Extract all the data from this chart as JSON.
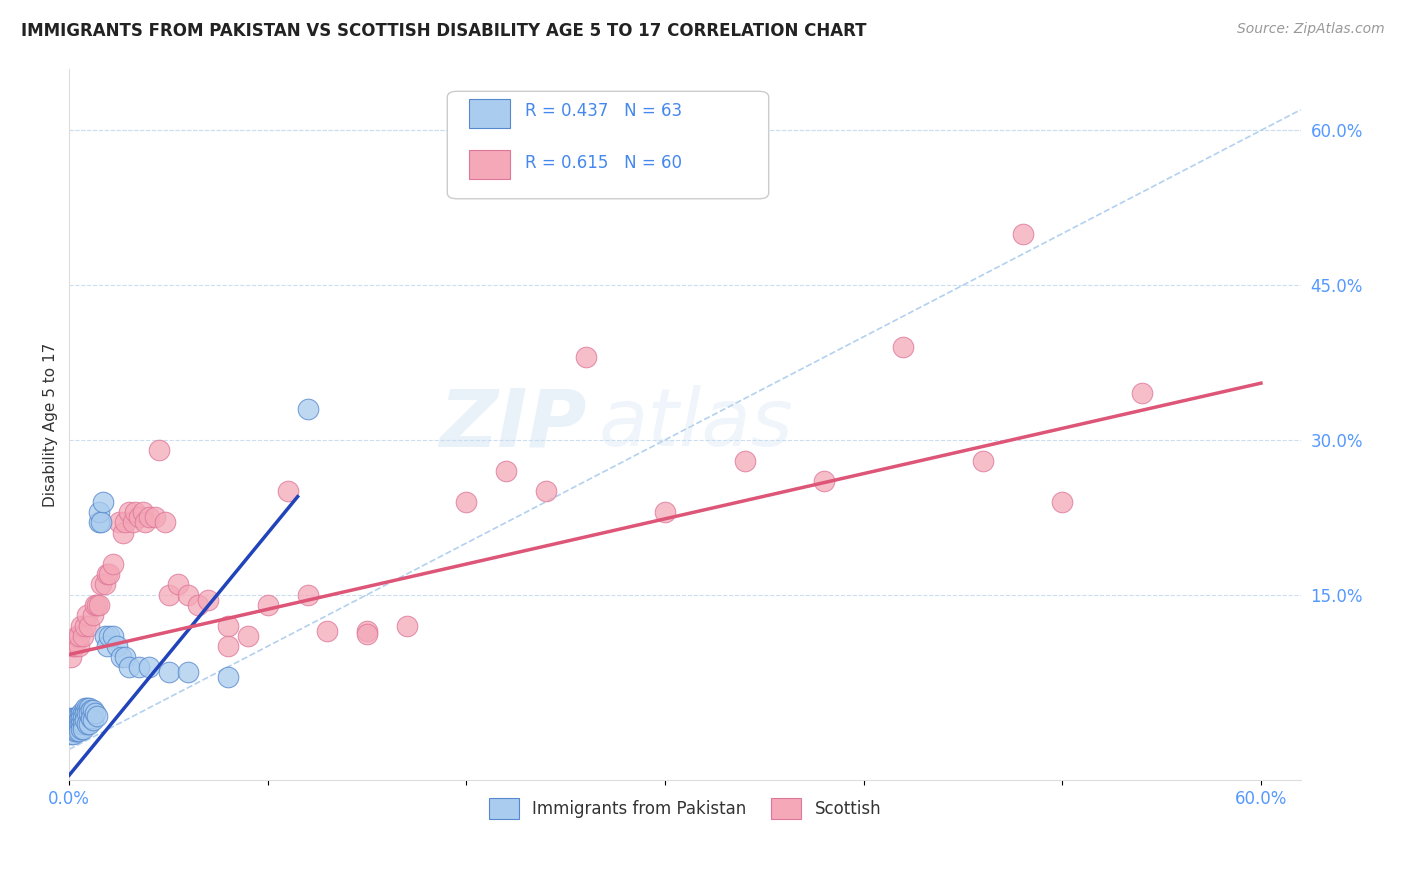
{
  "title": "IMMIGRANTS FROM PAKISTAN VS SCOTTISH DISABILITY AGE 5 TO 17 CORRELATION CHART",
  "source": "Source: ZipAtlas.com",
  "ylabel": "Disability Age 5 to 17",
  "xlim": [
    0.0,
    0.62
  ],
  "ylim": [
    -0.03,
    0.66
  ],
  "xticks": [
    0.0,
    0.1,
    0.2,
    0.3,
    0.4,
    0.5,
    0.6
  ],
  "xtick_labels": [
    "0.0%",
    "",
    "",
    "",
    "",
    "",
    "60.0%"
  ],
  "yticks_right": [
    0.15,
    0.3,
    0.45,
    0.6
  ],
  "ytick_labels_right": [
    "15.0%",
    "30.0%",
    "45.0%",
    "60.0%"
  ],
  "legend_label1": "Immigrants from Pakistan",
  "legend_label2": "Scottish",
  "blue_color": "#aaccee",
  "pink_color": "#f4a8b8",
  "blue_edge_color": "#5588cc",
  "pink_edge_color": "#dd7799",
  "blue_line_color": "#2244bb",
  "pink_line_color": "#dd5577",
  "ref_line_color": "#aaccee",
  "watermark_zip": "ZIP",
  "watermark_atlas": "atlas",
  "blue_scatter_x": [
    0.0005,
    0.001,
    0.001,
    0.001,
    0.002,
    0.002,
    0.002,
    0.002,
    0.003,
    0.003,
    0.003,
    0.003,
    0.003,
    0.004,
    0.004,
    0.004,
    0.004,
    0.005,
    0.005,
    0.005,
    0.005,
    0.005,
    0.006,
    0.006,
    0.006,
    0.006,
    0.007,
    0.007,
    0.007,
    0.007,
    0.008,
    0.008,
    0.008,
    0.009,
    0.009,
    0.009,
    0.01,
    0.01,
    0.01,
    0.011,
    0.011,
    0.012,
    0.012,
    0.013,
    0.014,
    0.015,
    0.015,
    0.016,
    0.017,
    0.018,
    0.019,
    0.02,
    0.022,
    0.024,
    0.026,
    0.028,
    0.03,
    0.035,
    0.04,
    0.05,
    0.06,
    0.08,
    0.12
  ],
  "blue_scatter_y": [
    0.03,
    0.025,
    0.02,
    0.015,
    0.03,
    0.025,
    0.02,
    0.015,
    0.03,
    0.028,
    0.025,
    0.022,
    0.018,
    0.03,
    0.025,
    0.022,
    0.018,
    0.03,
    0.028,
    0.025,
    0.022,
    0.018,
    0.035,
    0.03,
    0.025,
    0.02,
    0.035,
    0.03,
    0.025,
    0.02,
    0.04,
    0.035,
    0.028,
    0.04,
    0.035,
    0.025,
    0.04,
    0.035,
    0.025,
    0.038,
    0.03,
    0.038,
    0.028,
    0.035,
    0.032,
    0.22,
    0.23,
    0.22,
    0.24,
    0.11,
    0.1,
    0.11,
    0.11,
    0.1,
    0.09,
    0.09,
    0.08,
    0.08,
    0.08,
    0.075,
    0.075,
    0.07,
    0.33
  ],
  "pink_scatter_x": [
    0.001,
    0.002,
    0.003,
    0.004,
    0.005,
    0.005,
    0.006,
    0.007,
    0.008,
    0.009,
    0.01,
    0.012,
    0.013,
    0.014,
    0.015,
    0.016,
    0.018,
    0.019,
    0.02,
    0.022,
    0.025,
    0.027,
    0.028,
    0.03,
    0.032,
    0.033,
    0.035,
    0.037,
    0.038,
    0.04,
    0.043,
    0.045,
    0.048,
    0.05,
    0.055,
    0.06,
    0.065,
    0.07,
    0.08,
    0.09,
    0.1,
    0.11,
    0.13,
    0.15,
    0.17,
    0.2,
    0.22,
    0.24,
    0.26,
    0.3,
    0.34,
    0.38,
    0.42,
    0.46,
    0.5,
    0.54,
    0.08,
    0.12,
    0.15,
    0.48
  ],
  "pink_scatter_y": [
    0.09,
    0.1,
    0.1,
    0.11,
    0.1,
    0.11,
    0.12,
    0.11,
    0.12,
    0.13,
    0.12,
    0.13,
    0.14,
    0.14,
    0.14,
    0.16,
    0.16,
    0.17,
    0.17,
    0.18,
    0.22,
    0.21,
    0.22,
    0.23,
    0.22,
    0.23,
    0.225,
    0.23,
    0.22,
    0.225,
    0.225,
    0.29,
    0.22,
    0.15,
    0.16,
    0.15,
    0.14,
    0.145,
    0.12,
    0.11,
    0.14,
    0.25,
    0.115,
    0.115,
    0.12,
    0.24,
    0.27,
    0.25,
    0.38,
    0.23,
    0.28,
    0.26,
    0.39,
    0.28,
    0.24,
    0.345,
    0.1,
    0.15,
    0.112,
    0.5
  ],
  "blue_line_x0": 0.0,
  "blue_line_y0": -0.025,
  "blue_line_x1": 0.115,
  "blue_line_y1": 0.245,
  "pink_line_x0": 0.0,
  "pink_line_y0": 0.092,
  "pink_line_x1": 0.6,
  "pink_line_y1": 0.355
}
